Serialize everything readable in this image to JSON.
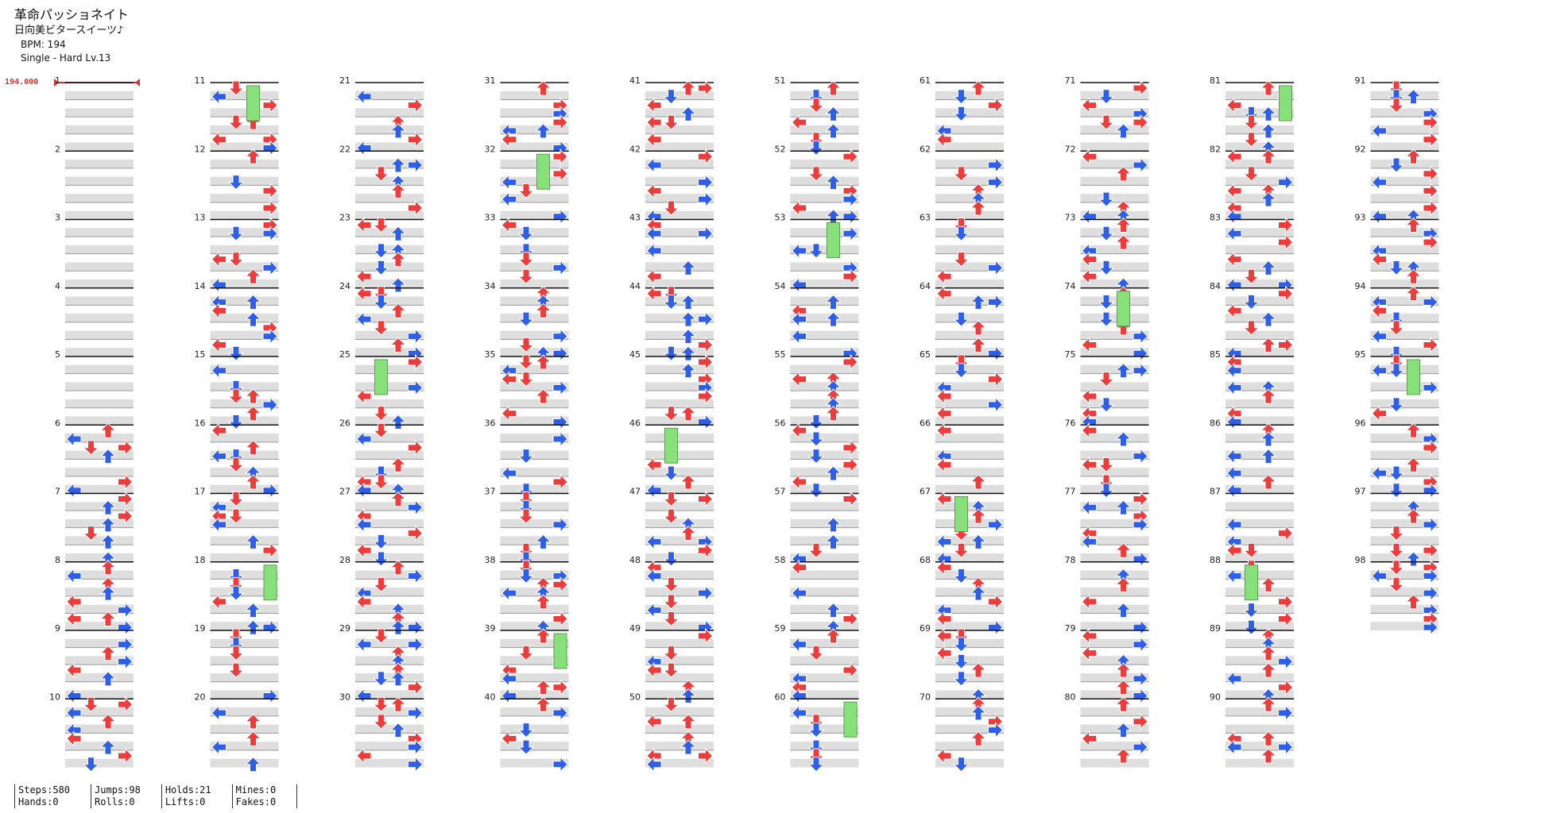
{
  "song": {
    "title": "革命パッショネイト",
    "artist": "日向美ビタースイーツ♪",
    "bpm_text": "BPM: 194",
    "difficulty_text": "Single - Hard  Lv.13"
  },
  "bpm_marker": "194.000",
  "measures": {
    "count": 98,
    "labels": [
      "1",
      "2",
      "3",
      "4",
      "5",
      "6",
      "7",
      "8",
      "9",
      "10",
      "11",
      "12",
      "13",
      "14",
      "15",
      "16",
      "17",
      "18",
      "19",
      "20",
      "21",
      "22",
      "23",
      "24",
      "25",
      "26",
      "27",
      "28",
      "29",
      "30",
      "31",
      "32",
      "33",
      "34",
      "35",
      "36",
      "37",
      "38",
      "39",
      "40",
      "41",
      "42",
      "43",
      "44",
      "45",
      "46",
      "47",
      "48",
      "49",
      "50",
      "51",
      "52",
      "53",
      "54",
      "55",
      "56",
      "57",
      "58",
      "59",
      "60",
      "61",
      "62",
      "63",
      "64",
      "65",
      "66",
      "67",
      "68",
      "69",
      "70",
      "71",
      "72",
      "73",
      "74",
      "75",
      "76",
      "77",
      "78",
      "79",
      "80",
      "81",
      "82",
      "83",
      "84",
      "85",
      "86",
      "87",
      "88",
      "89",
      "90",
      "91",
      "92",
      "93",
      "94",
      "95",
      "96",
      "97",
      "98"
    ]
  },
  "colors": {
    "quarter": "#ee3b3b",
    "eighth": "#2f5fe8",
    "sixteenth": "#f2d23a",
    "twentyfourth": "#b04cf0",
    "hold": "#88e07a",
    "row_shade": "#dedede",
    "measure_line": "#111111"
  },
  "stats": {
    "steps": "Steps:580",
    "hands": "Hands:0",
    "jumps": "Jumps:98",
    "rolls": "Rolls:0",
    "holds": "Holds:21",
    "lifts": "Lifts:0",
    "mines": "Mines:0",
    "fakes": "Fakes:0"
  }
}
